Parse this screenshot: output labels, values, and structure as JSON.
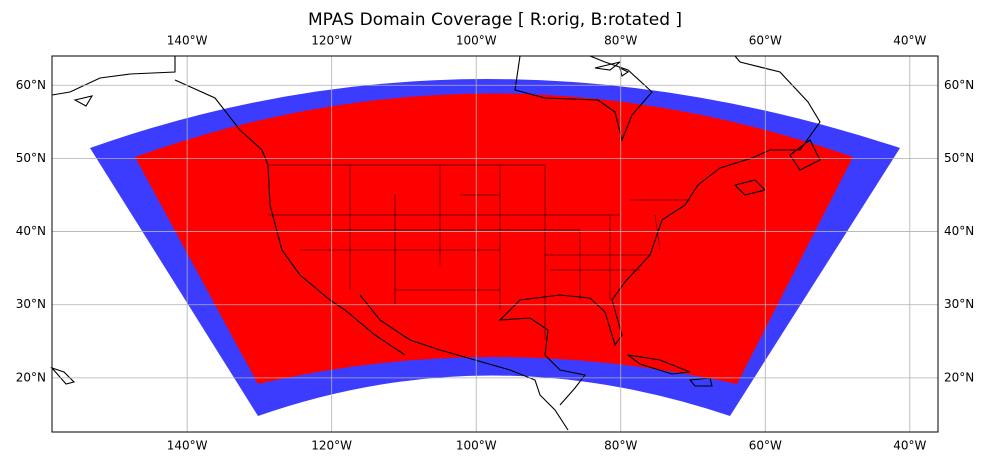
{
  "map": {
    "title": "MPAS Domain Coverage [ R:orig, B:rotated ]",
    "xlim": [
      -158.7,
      -36.1
    ],
    "ylim": [
      12.6,
      64
    ],
    "xticks": [
      {
        "value": -140,
        "label": "140°W"
      },
      {
        "value": -120,
        "label": "120°W"
      },
      {
        "value": -100,
        "label": "100°W"
      },
      {
        "value": -80,
        "label": "80°W"
      },
      {
        "value": -60,
        "label": "60°W"
      },
      {
        "value": -40,
        "label": "40°W"
      }
    ],
    "yticks": [
      {
        "value": 20,
        "label": "20°N"
      },
      {
        "value": 30,
        "label": "30°N"
      },
      {
        "value": 40,
        "label": "40°N"
      },
      {
        "value": 50,
        "label": "50°N"
      },
      {
        "value": 60,
        "label": "60°N"
      }
    ]
  }
}
